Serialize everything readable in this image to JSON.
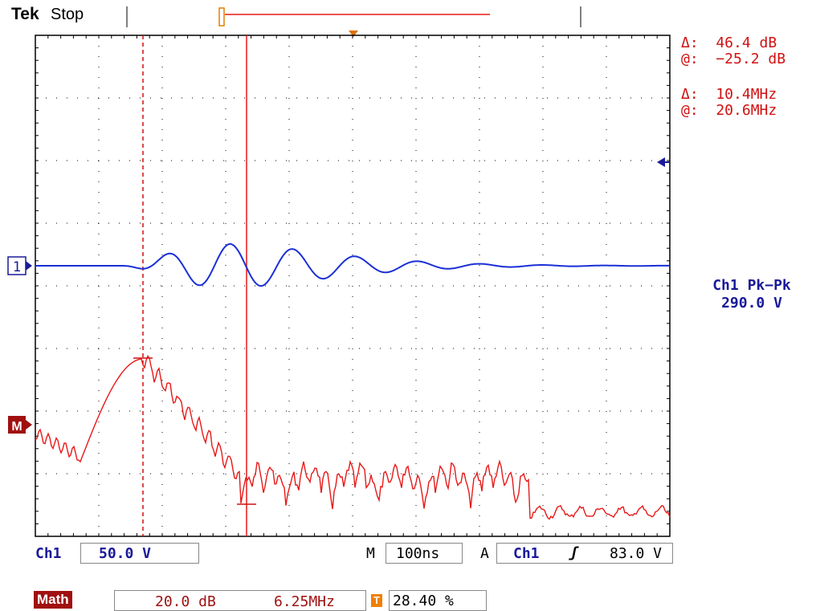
{
  "header": {
    "brand": "Tek",
    "acq_state": "Stop"
  },
  "cursor_readouts": {
    "amplitude_delta": "Δ:  46.4 dB",
    "amplitude_at": "@:  −25.2 dB",
    "frequency_delta": "Δ:  10.4MHz",
    "frequency_at": "@:  20.6MHz"
  },
  "measurement": {
    "name": "Ch1 Pk−Pk",
    "value": "290.0 V"
  },
  "markers": {
    "ch1": "1",
    "math": "M"
  },
  "ch1_bar": {
    "label": "Ch1",
    "scale": "50.0 V"
  },
  "timebase": {
    "label": "M",
    "value": "100ns"
  },
  "trigger": {
    "label": "A",
    "source": "Ch1",
    "slope": "ʃ",
    "level": "83.0 V"
  },
  "math_bar": {
    "label": "Math",
    "scale": "20.0 dB",
    "freq": "6.25MHz",
    "trigger_icon": "T",
    "position": "28.40 %"
  },
  "colors": {
    "ch1_trace": "#1a2fd6",
    "math_trace": "#e81818",
    "cursor": "#d01010",
    "grid": "#000000"
  }
}
